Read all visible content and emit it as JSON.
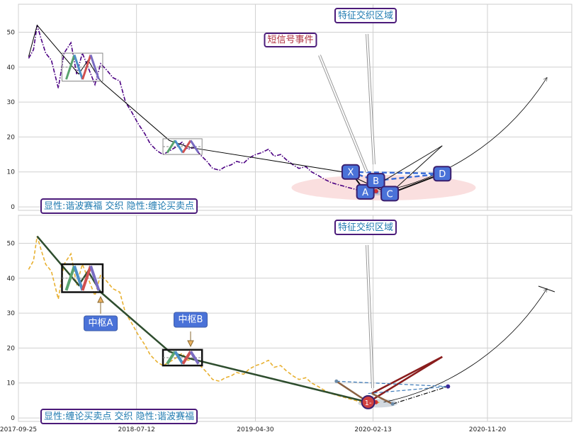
{
  "chart_data": [
    {
      "type": "line",
      "panel": "top",
      "xlim": [
        "2017-09-25",
        "2021-06-15"
      ],
      "ylim": [
        -1,
        58
      ],
      "yticks": [
        0,
        10,
        20,
        30,
        40,
        50
      ],
      "grid": true,
      "series": [
        {
          "style": "dash-dot",
          "color": "#4b0082",
          "x": [
            "2017-10-20",
            "2017-11-01",
            "2017-11-10",
            "2017-11-20",
            "2017-12-01",
            "2017-12-15",
            "2018-01-01",
            "2018-01-15",
            "2018-02-01",
            "2018-02-15",
            "2018-03-01",
            "2018-03-15",
            "2018-04-01",
            "2018-04-15",
            "2018-05-01",
            "2018-05-15",
            "2018-06-01",
            "2018-06-15",
            "2018-07-01",
            "2018-07-15",
            "2018-08-01",
            "2018-08-15",
            "2018-09-01",
            "2018-09-15",
            "2018-10-01",
            "2018-10-15",
            "2018-11-01",
            "2018-11-15",
            "2018-12-01",
            "2018-12-15",
            "2019-01-01",
            "2019-01-15",
            "2019-02-01",
            "2019-02-15",
            "2019-03-01",
            "2019-03-15",
            "2019-04-01",
            "2019-04-15",
            "2019-05-01",
            "2019-05-15",
            "2019-06-01",
            "2019-06-15",
            "2019-07-01",
            "2019-07-15",
            "2019-08-01",
            "2019-08-15",
            "2019-09-01",
            "2019-09-15",
            "2019-10-01",
            "2019-10-15",
            "2019-11-01",
            "2019-11-15",
            "2019-12-01",
            "2019-12-15",
            "2020-01-01",
            "2020-01-15",
            "2020-02-01",
            "2020-02-15",
            "2020-03-01"
          ],
          "y": [
            42.5,
            45,
            52,
            48,
            44,
            42,
            34,
            44,
            47,
            38,
            44,
            40,
            35,
            41,
            39,
            37,
            36,
            30,
            27,
            24,
            21,
            18,
            16,
            15,
            16,
            17,
            18.5,
            16.5,
            17,
            15,
            13,
            11,
            10.5,
            11.5,
            12,
            13,
            12.5,
            14,
            15,
            15.5,
            16.5,
            14.5,
            15,
            13.5,
            12,
            11,
            11.5,
            10,
            9,
            8,
            7,
            6.5,
            6,
            5.5,
            5,
            4.5,
            4,
            4.2,
            4.5
          ]
        },
        {
          "style": "solid",
          "color": "#000000",
          "x": [
            "2017-10-20",
            "2017-11-10",
            "2018-02-20",
            "2018-03-15",
            "2018-04-15",
            "2018-10-01",
            "2018-11-20",
            "2019-12-01",
            "2020-03-10"
          ],
          "y": [
            43,
            52,
            38,
            42,
            36,
            19,
            17,
            10,
            4.5
          ]
        },
        {
          "style": "arc",
          "color": "#000000",
          "x": [
            "2020-03-10",
            "2020-08-01",
            "2021-01-01",
            "2021-04-15"
          ],
          "y": [
            4.5,
            8,
            18,
            37
          ]
        }
      ],
      "points": [
        {
          "label": "X",
          "x": "2019-12-20",
          "y": 10
        },
        {
          "label": "A",
          "x": "2020-01-25",
          "y": 4.3
        },
        {
          "label": "B",
          "x": "2020-02-20",
          "y": 7.5
        },
        {
          "label": "C",
          "x": "2020-03-25",
          "y": 3.8
        },
        {
          "label": "D",
          "x": "2020-08-01",
          "y": 9.5
        }
      ],
      "annotations": {
        "short_signal": "短信号事件",
        "feature_region": "特征交织区域",
        "legend_text": "显性:谐波赛福 交织 隐性:缠论买卖点"
      }
    },
    {
      "type": "line",
      "panel": "bottom",
      "xlim": [
        "2017-09-25",
        "2021-06-15"
      ],
      "ylim": [
        -1,
        58
      ],
      "yticks": [
        0,
        10,
        20,
        30,
        40,
        50
      ],
      "xticks": [
        "2017-09-25",
        "2018-07-12",
        "2019-04-30",
        "2020-02-13",
        "2020-11-20"
      ],
      "grid": true,
      "series": [
        {
          "style": "dashed",
          "color": "#e8b030",
          "x": [
            "2017-10-20",
            "2017-11-01",
            "2017-11-10",
            "2017-11-20",
            "2017-12-01",
            "2017-12-15",
            "2018-01-01",
            "2018-01-15",
            "2018-02-01",
            "2018-02-15",
            "2018-03-01",
            "2018-03-15",
            "2018-04-01",
            "2018-04-15",
            "2018-05-01",
            "2018-05-15",
            "2018-06-01",
            "2018-06-15",
            "2018-07-01",
            "2018-07-15",
            "2018-08-01",
            "2018-08-15",
            "2018-09-01",
            "2018-09-15",
            "2018-10-01",
            "2018-10-15",
            "2018-11-01",
            "2018-11-15",
            "2018-12-01",
            "2018-12-15",
            "2019-01-01",
            "2019-01-15",
            "2019-02-01",
            "2019-02-15",
            "2019-03-01",
            "2019-03-15",
            "2019-04-01",
            "2019-04-15",
            "2019-05-01",
            "2019-05-15",
            "2019-06-01",
            "2019-06-15",
            "2019-07-01",
            "2019-07-15",
            "2019-08-01",
            "2019-08-15",
            "2019-09-01",
            "2019-09-15",
            "2019-10-01",
            "2019-10-15",
            "2019-11-01",
            "2019-11-15",
            "2019-12-01",
            "2019-12-15",
            "2020-01-01",
            "2020-01-15",
            "2020-02-01",
            "2020-02-15",
            "2020-03-01"
          ],
          "y": [
            42.5,
            45,
            52,
            48,
            44,
            42,
            34,
            44,
            47,
            38,
            44,
            40,
            35,
            41,
            39,
            37,
            36,
            30,
            27,
            24,
            21,
            18,
            16,
            15,
            16,
            17,
            18.5,
            16.5,
            17,
            15,
            13,
            11,
            10.5,
            11.5,
            12,
            13,
            12.5,
            14,
            15,
            15.5,
            16.5,
            14.5,
            15,
            13.5,
            12,
            11,
            11.5,
            10,
            9,
            8,
            7,
            6.5,
            6,
            5.5,
            5,
            4.5,
            4,
            4.2,
            4.5
          ]
        },
        {
          "style": "solid",
          "color": "#2e4d2e",
          "x": [
            "2017-11-10",
            "2018-02-20",
            "2018-03-15",
            "2018-04-15",
            "2018-10-01",
            "2018-11-20",
            "2020-02-01"
          ],
          "y": [
            52,
            38,
            42,
            36,
            19,
            17,
            4.5
          ]
        },
        {
          "style": "arc",
          "color": "#000000",
          "x": [
            "2020-03-10",
            "2020-08-01",
            "2021-01-01",
            "2021-04-15"
          ],
          "y": [
            4.5,
            8,
            18,
            37
          ]
        }
      ],
      "annotations": {
        "zhongshu_a": "中枢A",
        "zhongshu_b": "中枢B",
        "feature_region": "特征交织区域",
        "point_label": "1-",
        "legend_text": "显性:缠论买卖点 交织 隐性:谐波赛福"
      }
    }
  ]
}
